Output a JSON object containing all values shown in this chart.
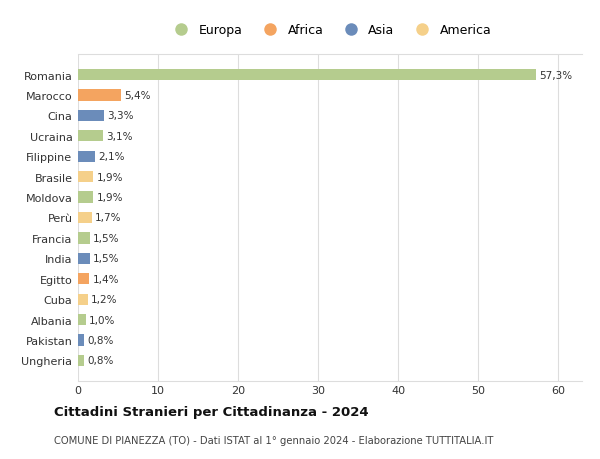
{
  "countries": [
    "Romania",
    "Marocco",
    "Cina",
    "Ucraina",
    "Filippine",
    "Brasile",
    "Moldova",
    "Perù",
    "Francia",
    "India",
    "Egitto",
    "Cuba",
    "Albania",
    "Pakistan",
    "Ungheria"
  ],
  "values": [
    57.3,
    5.4,
    3.3,
    3.1,
    2.1,
    1.9,
    1.9,
    1.7,
    1.5,
    1.5,
    1.4,
    1.2,
    1.0,
    0.8,
    0.8
  ],
  "labels": [
    "57,3%",
    "5,4%",
    "3,3%",
    "3,1%",
    "2,1%",
    "1,9%",
    "1,9%",
    "1,7%",
    "1,5%",
    "1,5%",
    "1,4%",
    "1,2%",
    "1,0%",
    "0,8%",
    "0,8%"
  ],
  "colors": [
    "#b5cc8e",
    "#f4a460",
    "#6b8cba",
    "#b5cc8e",
    "#6b8cba",
    "#f5d08a",
    "#b5cc8e",
    "#f5d08a",
    "#b5cc8e",
    "#6b8cba",
    "#f4a460",
    "#f5d08a",
    "#b5cc8e",
    "#6b8cba",
    "#b5cc8e"
  ],
  "legend_labels": [
    "Europa",
    "Africa",
    "Asia",
    "America"
  ],
  "legend_colors": [
    "#b5cc8e",
    "#f4a460",
    "#6b8cba",
    "#f5d08a"
  ],
  "title": "Cittadini Stranieri per Cittadinanza - 2024",
  "subtitle": "COMUNE DI PIANEZZA (TO) - Dati ISTAT al 1° gennaio 2024 - Elaborazione TUTTITALIA.IT",
  "xlim": [
    0,
    63
  ],
  "xticks": [
    0,
    10,
    20,
    30,
    40,
    50,
    60
  ],
  "bg_color": "#ffffff",
  "grid_color": "#dddddd"
}
